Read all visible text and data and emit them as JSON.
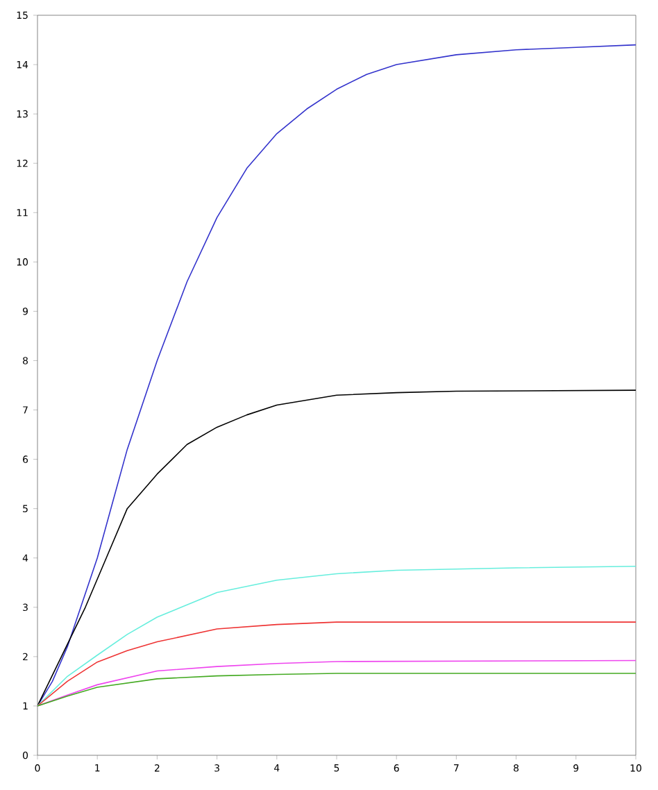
{
  "chart_data": {
    "type": "line",
    "xlim": [
      0,
      10
    ],
    "ylim": [
      0,
      15
    ],
    "xticks": [
      0,
      1,
      2,
      3,
      4,
      5,
      6,
      7,
      8,
      9,
      10
    ],
    "yticks": [
      0,
      1,
      2,
      3,
      4,
      5,
      6,
      7,
      8,
      9,
      10,
      11,
      12,
      13,
      14,
      15
    ],
    "grid": false,
    "series": [
      {
        "color": "#3333cc",
        "x": [
          0,
          0.25,
          0.5,
          0.75,
          1,
          1.25,
          1.5,
          1.75,
          2,
          2.5,
          3,
          3.5,
          4,
          4.5,
          5,
          5.5,
          6,
          7,
          8,
          9,
          10
        ],
        "values": [
          1,
          1.5,
          2.2,
          3.1,
          4.0,
          5.1,
          6.2,
          7.1,
          8.0,
          9.6,
          10.9,
          11.9,
          12.6,
          13.1,
          13.5,
          13.8,
          14.0,
          14.2,
          14.3,
          14.35,
          14.4
        ]
      },
      {
        "color": "#000000",
        "x": [
          0,
          0.4,
          0.8,
          1.15,
          1.5,
          2,
          2.25,
          2.5,
          3,
          3.5,
          4,
          5,
          6,
          7,
          10
        ],
        "values": [
          1,
          2,
          3,
          4,
          5,
          5.7,
          6,
          6.3,
          6.65,
          6.9,
          7.1,
          7.3,
          7.35,
          7.38,
          7.4
        ]
      },
      {
        "color": "#66eedd",
        "x": [
          0,
          0.5,
          1,
          1.5,
          2,
          3,
          4,
          5,
          6,
          8,
          10
        ],
        "values": [
          1,
          1.6,
          2.03,
          2.45,
          2.8,
          3.3,
          3.55,
          3.68,
          3.75,
          3.8,
          3.83
        ]
      },
      {
        "color": "#ee3333",
        "x": [
          0,
          0.5,
          1,
          1.5,
          2,
          3,
          4,
          5,
          10
        ],
        "values": [
          1,
          1.5,
          1.89,
          2.12,
          2.3,
          2.56,
          2.65,
          2.7,
          2.7
        ]
      },
      {
        "color": "#ee44ee",
        "x": [
          0,
          0.5,
          1,
          2,
          3,
          4,
          5,
          10
        ],
        "values": [
          1,
          1.22,
          1.43,
          1.71,
          1.8,
          1.86,
          1.9,
          1.92
        ]
      },
      {
        "color": "#44aa22",
        "x": [
          0,
          0.5,
          1,
          2,
          3,
          4,
          5,
          10
        ],
        "values": [
          1,
          1.2,
          1.38,
          1.55,
          1.61,
          1.64,
          1.66,
          1.66
        ]
      }
    ]
  }
}
